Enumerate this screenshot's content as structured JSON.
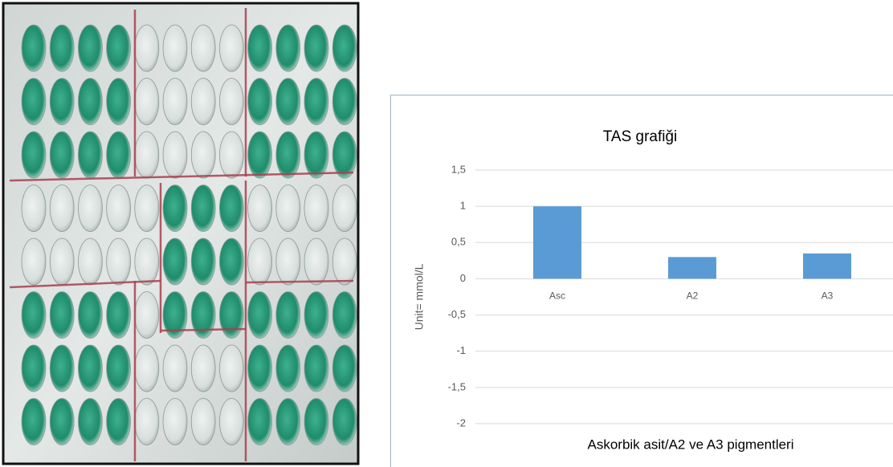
{
  "chart_data": {
    "type": "bar",
    "title": "TAS grafiği",
    "y_label": "Unit= mmol/L",
    "x_label": "Askorbik asit/A2 ve A3 pigmentleri",
    "categories": [
      "Asc",
      "A2",
      "A3"
    ],
    "values": [
      1,
      0.3,
      0.35
    ],
    "color": "#5b9bd5",
    "ylim": [
      -2,
      1.5
    ],
    "yticks": [
      {
        "value": -2,
        "label": "-2"
      },
      {
        "value": -1.5,
        "label": "-1,5"
      },
      {
        "value": -1,
        "label": "-1"
      },
      {
        "value": -0.5,
        "label": "-0,5"
      },
      0,
      {
        "value": 0.5,
        "label": "0,5"
      },
      1,
      {
        "value": 1.5,
        "label": "1,5"
      }
    ],
    "grid": true
  }
}
